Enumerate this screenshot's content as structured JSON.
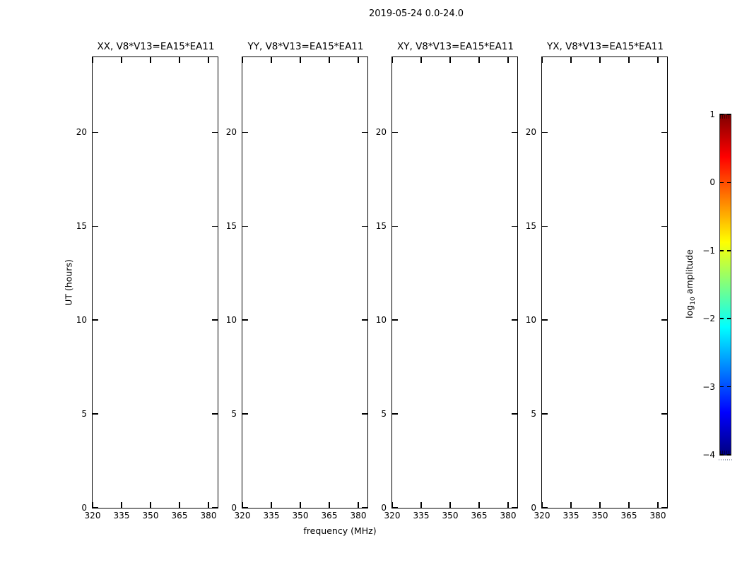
{
  "chart_data": {
    "type": "heatmap",
    "title": "2019-05-24 0.0-24.0",
    "panels": [
      {
        "title": "XX, V8*V13=EA15*EA11"
      },
      {
        "title": "YY, V8*V13=EA15*EA11"
      },
      {
        "title": "XY, V8*V13=EA15*EA11"
      },
      {
        "title": "YX, V8*V13=EA15*EA11"
      }
    ],
    "panels_empty": true,
    "values": [],
    "xlabel": "frequency (MHz)",
    "ylabel": "UT (hours)",
    "xticks": [
      320,
      335,
      350,
      365,
      380
    ],
    "yticks": [
      0,
      5,
      10,
      15,
      20
    ],
    "xlim": [
      320,
      385
    ],
    "ylim": [
      0,
      24
    ],
    "grid": false,
    "legend_position": "none",
    "colorbar": {
      "label_prefix": "log",
      "label_sub": "10",
      "label_suffix": " amplitude",
      "ticks": [
        {
          "label": "1",
          "value": 1
        },
        {
          "label": "0",
          "value": 0
        },
        {
          "label": "−1",
          "value": -1
        },
        {
          "label": "−2",
          "value": -2
        },
        {
          "label": "−3",
          "value": -3
        },
        {
          "label": "−4",
          "value": -4
        },
        {
          "label": "",
          "value": null
        }
      ],
      "range": [
        -4,
        1
      ],
      "colormap": "jet",
      "colors": [
        "#000080",
        "#0000ff",
        "#00ffff",
        "#ffff00",
        "#ff0000",
        "#800000"
      ]
    }
  }
}
